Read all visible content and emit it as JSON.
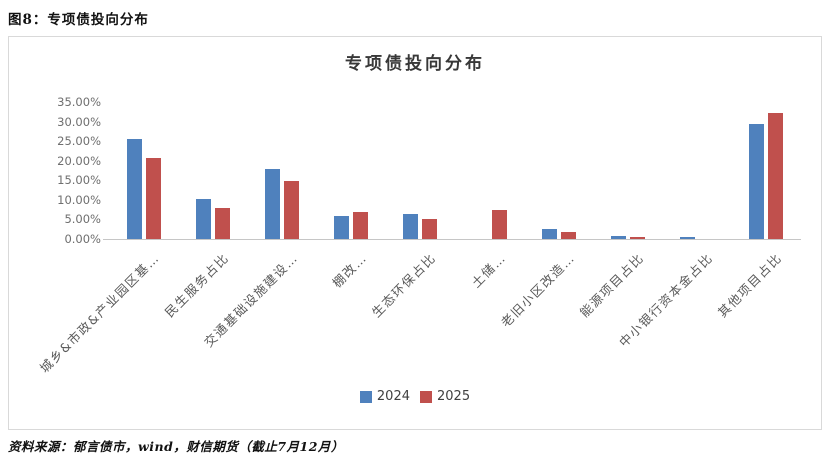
{
  "page": {
    "header": "图8：专项债投向分布",
    "footer": "资料来源：郁言债市，wind，财信期货（截止7月12月）"
  },
  "chart_data": {
    "type": "bar",
    "title": "专项债投向分布",
    "categories": [
      "城乡&市政&产业园区基…",
      "民生服务占比",
      "交通基础设施建设…",
      "棚改…",
      "生态环保占比",
      "土储…",
      "老旧小区改造…",
      "能源项目占比",
      "中小银行资本金占比",
      "其他项目占比"
    ],
    "series": [
      {
        "name": "2024",
        "color": "#4F81BD",
        "values": [
          25.5,
          10.2,
          18.0,
          5.9,
          6.4,
          0,
          2.5,
          0.8,
          0.5,
          29.3
        ]
      },
      {
        "name": "2025",
        "color": "#C0504D",
        "values": [
          20.8,
          8.0,
          14.8,
          7.0,
          5.1,
          7.5,
          1.8,
          0.4,
          0,
          32.3
        ]
      }
    ],
    "xlabel": "",
    "ylabel": "",
    "ylim": [
      0,
      35
    ],
    "ytick_step": 5,
    "yticks": [
      "35.00%",
      "30.00%",
      "25.00%",
      "20.00%",
      "15.00%",
      "10.00%",
      "5.00%",
      "0.00%"
    ],
    "grid": false,
    "legend_position": "bottom"
  }
}
